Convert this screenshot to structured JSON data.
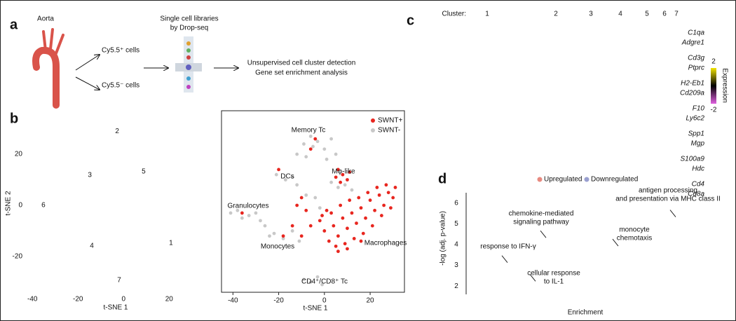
{
  "panel_a": {
    "label": "a",
    "aorta": "Aorta",
    "cy_pos": "Cy5.5⁺ cells",
    "cy_neg": "Cy5.5⁻ cells",
    "libraries": [
      "Single cell libraries",
      "by Drop-seq"
    ],
    "analysis": [
      "Unsupervised cell cluster detection",
      "Gene set enrichment analysis"
    ]
  },
  "panel_b": {
    "label": "b",
    "left": {
      "type": "scatter",
      "xlabel": "t-SNE 1",
      "ylabel": "t-SNE 2",
      "xlim": [
        -45,
        35
      ],
      "ylim": [
        -34,
        37
      ],
      "xticks": [
        -40,
        -20,
        0,
        20
      ],
      "yticks": [
        -20,
        0,
        20
      ],
      "cluster_labels": [
        "1",
        "2",
        "3",
        "4",
        "5",
        "6",
        "7"
      ]
    },
    "right": {
      "type": "scatter",
      "xlabel": "t-SNE 1",
      "xlim": [
        -45,
        35
      ],
      "ylim": [
        -34,
        37
      ],
      "xticks": [
        -40,
        -20,
        0,
        20
      ],
      "series": [
        {
          "name": "SWNT+",
          "color": "#e8261f",
          "x": [
            0,
            2,
            4,
            6,
            8,
            10,
            12,
            14,
            16,
            18,
            20,
            22,
            24,
            26,
            28,
            30,
            5,
            9,
            13,
            17,
            21,
            25,
            29,
            3,
            7,
            11,
            15,
            19,
            23,
            27,
            -2,
            1,
            6,
            10,
            31,
            16,
            6,
            8,
            10,
            7,
            11,
            5,
            -12,
            -10,
            -8,
            -14,
            -18,
            -10,
            -20,
            -36,
            -6,
            -4,
            -1,
            -6
          ],
          "y": [
            -10,
            -14,
            -8,
            -12,
            -5,
            -9,
            -3,
            -7,
            -1,
            -5,
            2,
            -2,
            4,
            0,
            5,
            3,
            -16,
            -15,
            -13,
            -11,
            -8,
            -4,
            -1,
            -3,
            0,
            2,
            3,
            5,
            7,
            8,
            -6,
            -2,
            -18,
            -17,
            7,
            -14,
            14,
            12,
            10,
            9,
            13,
            11,
            0,
            3,
            -2,
            -8,
            -12,
            -12,
            14,
            -3,
            22,
            26,
            -4,
            -8
          ]
        },
        {
          "name": "SWNT-",
          "color": "#c8c8c8",
          "x": [
            -12,
            -9,
            -6,
            -3,
            0,
            3,
            5,
            -8,
            1,
            -5,
            -41,
            -38,
            -36,
            -33,
            -30,
            -28,
            -26,
            -22,
            -18,
            -14,
            -11,
            -24,
            -9,
            -6,
            -3,
            -1,
            -21,
            -17,
            -14,
            -12,
            3,
            6,
            9,
            12,
            -4,
            -2,
            -8
          ],
          "y": [
            20,
            24,
            27,
            25,
            22,
            26,
            20,
            19,
            18,
            23,
            -3,
            -2,
            -5,
            -4,
            -3,
            -6,
            -8,
            -11,
            -13,
            -10,
            -14,
            -12,
            -29,
            -30,
            -28,
            -31,
            12,
            10,
            11,
            8,
            9,
            7,
            8,
            6,
            3,
            -1,
            4
          ]
        }
      ],
      "annotations": [
        "Memory Tc",
        "Mφ-like",
        "DCs",
        "Granulocytes",
        "Monocytes",
        "Macrophages",
        "CD4⁺/CD8⁺ Tc"
      ]
    }
  },
  "panel_c": {
    "label": "c",
    "cluster_title": "Cluster:",
    "clusters": [
      "1",
      "2",
      "3",
      "4",
      "5",
      "6",
      "7"
    ],
    "genes": [
      "C1qa",
      "Adgre1",
      "Cd3g",
      "Ptprc",
      "H2-Eb1",
      "Cd209a",
      "F10",
      "Ly6c2",
      "Spp1",
      "Mgp",
      "S100a9",
      "Hdc",
      "Cd4",
      "Cd8a"
    ],
    "colorbar": {
      "label": "Expression",
      "ticks": [
        2,
        -2
      ]
    }
  },
  "panel_d": {
    "label": "d",
    "type": "scatter",
    "ylabel": "-log (adj. p-value)",
    "xlabel": "Enrichment",
    "legend": [
      {
        "name": "Upregulated",
        "color": "#e88a80"
      },
      {
        "name": "Downregulated",
        "color": "#9aa0d0"
      }
    ],
    "ylim": [
      1.6,
      6.5
    ],
    "yticks": [
      2,
      3,
      4,
      5,
      6
    ],
    "terms": [
      {
        "lines": [
          "antigen processing",
          "and presentation via MHC class II"
        ],
        "y": 5.5
      },
      {
        "lines": [
          "chemokine-mediated",
          "signaling pathway"
        ],
        "y": 4.5
      },
      {
        "lines": [
          "monocyte",
          "chemotaxis"
        ],
        "y": 4.1
      },
      {
        "lines": [
          "response to IFN-γ"
        ],
        "y": 3.3
      },
      {
        "lines": [
          "cellular response",
          "to IL-1"
        ],
        "y": 2.4
      }
    ]
  }
}
